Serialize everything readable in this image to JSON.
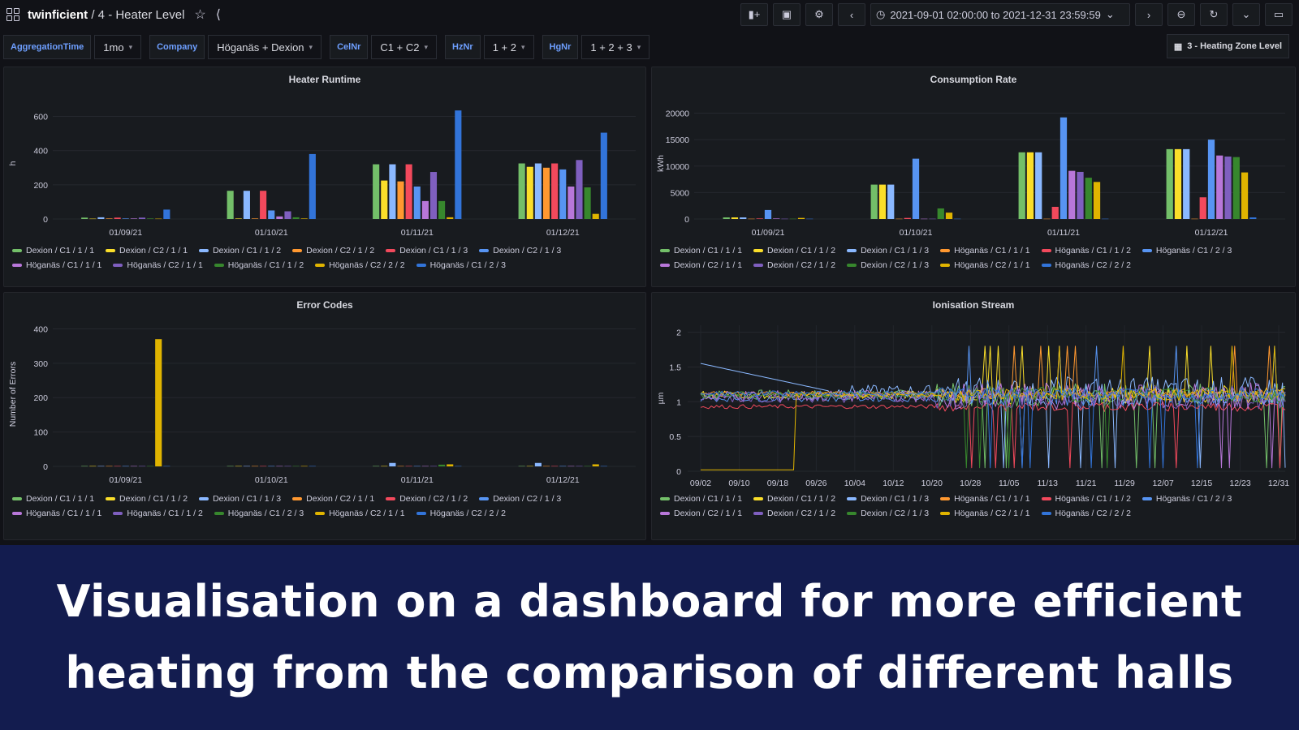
{
  "header": {
    "org": "twinficient",
    "dashboard": "/ 4 - Heater Level",
    "time_range": "2021-09-01 02:00:00 to 2021-12-31 23:59:59"
  },
  "variables": [
    {
      "label": "AggregationTime",
      "value": "1mo"
    },
    {
      "label": "Company",
      "value": "Höganäs + Dexion"
    },
    {
      "label": "CelNr",
      "value": "C1 + C2"
    },
    {
      "label": "HzNr",
      "value": "1 + 2"
    },
    {
      "label": "HgNr",
      "value": "1 + 2 + 3"
    }
  ],
  "dashlink": "3 - Heating Zone Level",
  "banner": {
    "line1": "Visualisation on a dashboard for more efficient",
    "line2": "heating from the comparison of different halls"
  },
  "chart_data": [
    {
      "title": "Heater Runtime",
      "type": "bar",
      "ylabel": "h",
      "ylim": [
        0,
        650
      ],
      "yticks": [
        0,
        200,
        400,
        600
      ],
      "categories": [
        "01/09/21",
        "01/10/21",
        "01/11/21",
        "01/12/21"
      ],
      "series": [
        {
          "name": "Dexion / C1 / 1 / 1",
          "color": "#73bf69",
          "values": [
            8,
            165,
            320,
            325
          ]
        },
        {
          "name": "Dexion / C2 / 1 / 1",
          "color": "#fade2a",
          "values": [
            2,
            3,
            225,
            305
          ]
        },
        {
          "name": "Dexion / C1 / 1 / 2",
          "color": "#8ab8ff",
          "values": [
            10,
            165,
            320,
            325
          ]
        },
        {
          "name": "Dexion / C2 / 1 / 2",
          "color": "#ff9830",
          "values": [
            3,
            3,
            220,
            300
          ]
        },
        {
          "name": "Dexion / C1 / 1 / 3",
          "color": "#f2495c",
          "values": [
            8,
            165,
            320,
            325
          ]
        },
        {
          "name": "Dexion / C2 / 1 / 3",
          "color": "#5794f2",
          "values": [
            3,
            50,
            190,
            290
          ]
        },
        {
          "name": "Höganäs / C1 / 1 / 1",
          "color": "#b877d9",
          "values": [
            3,
            15,
            105,
            190
          ]
        },
        {
          "name": "Höganäs / C2 / 1 / 1",
          "color": "#7f5fbf",
          "values": [
            8,
            45,
            275,
            345
          ]
        },
        {
          "name": "Höganäs / C1 / 1 / 2",
          "color": "#37872d",
          "values": [
            3,
            10,
            105,
            185
          ]
        },
        {
          "name": "Höganäs / C2 / 2 / 2",
          "color": "#e0b400",
          "values": [
            2,
            3,
            10,
            30
          ]
        },
        {
          "name": "Höganäs / C1 / 2 / 3",
          "color": "#3274d9",
          "values": [
            55,
            380,
            635,
            505
          ]
        }
      ]
    },
    {
      "title": "Consumption Rate",
      "type": "bar",
      "ylabel": "kWh",
      "ylim": [
        0,
        21000
      ],
      "yticks": [
        0,
        5000,
        10000,
        15000,
        20000
      ],
      "categories": [
        "01/09/21",
        "01/10/21",
        "01/11/21",
        "01/12/21"
      ],
      "series": [
        {
          "name": "Dexion / C1 / 1 / 1",
          "color": "#73bf69",
          "values": [
            300,
            6500,
            12600,
            13200
          ]
        },
        {
          "name": "Dexion / C1 / 1 / 2",
          "color": "#fade2a",
          "values": [
            300,
            6500,
            12600,
            13200
          ]
        },
        {
          "name": "Dexion / C1 / 1 / 3",
          "color": "#8ab8ff",
          "values": [
            300,
            6500,
            12600,
            13200
          ]
        },
        {
          "name": "Höganäs / C1 / 1 / 1",
          "color": "#ff9830",
          "values": [
            50,
            50,
            50,
            50
          ]
        },
        {
          "name": "Höganäs / C1 / 1 / 2",
          "color": "#f2495c",
          "values": [
            100,
            200,
            2300,
            4100
          ]
        },
        {
          "name": "Höganäs / C1 / 2 / 3",
          "color": "#5794f2",
          "values": [
            1700,
            11400,
            19200,
            15000
          ]
        },
        {
          "name": "Dexion / C2 / 1 / 1",
          "color": "#b877d9",
          "values": [
            100,
            50,
            9100,
            12000
          ]
        },
        {
          "name": "Dexion / C2 / 1 / 2",
          "color": "#7f5fbf",
          "values": [
            50,
            50,
            8900,
            11800
          ]
        },
        {
          "name": "Dexion / C2 / 1 / 3",
          "color": "#37872d",
          "values": [
            50,
            2000,
            7800,
            11700
          ]
        },
        {
          "name": "Höganäs / C2 / 1 / 1",
          "color": "#e0b400",
          "values": [
            200,
            1200,
            7000,
            8800
          ]
        },
        {
          "name": "Höganäs / C2 / 2 / 2",
          "color": "#3274d9",
          "values": [
            50,
            50,
            50,
            300
          ]
        }
      ]
    },
    {
      "title": "Error Codes",
      "type": "bar",
      "ylabel": "Number of Errors",
      "ylim": [
        0,
        420
      ],
      "yticks": [
        0,
        100,
        200,
        300,
        400
      ],
      "categories": [
        "01/09/21",
        "01/10/21",
        "01/11/21",
        "01/12/21"
      ],
      "series": [
        {
          "name": "Dexion / C1 / 1 / 1",
          "color": "#73bf69",
          "values": [
            1,
            1,
            1,
            1
          ]
        },
        {
          "name": "Dexion / C1 / 1 / 2",
          "color": "#fade2a",
          "values": [
            1,
            1,
            1,
            1
          ]
        },
        {
          "name": "Dexion / C1 / 1 / 3",
          "color": "#8ab8ff",
          "values": [
            1,
            1,
            10,
            10
          ]
        },
        {
          "name": "Dexion / C2 / 1 / 1",
          "color": "#ff9830",
          "values": [
            1,
            1,
            1,
            1
          ]
        },
        {
          "name": "Dexion / C2 / 1 / 2",
          "color": "#f2495c",
          "values": [
            1,
            1,
            1,
            1
          ]
        },
        {
          "name": "Dexion / C2 / 1 / 3",
          "color": "#5794f2",
          "values": [
            1,
            1,
            1,
            1
          ]
        },
        {
          "name": "Höganäs / C1 / 1 / 1",
          "color": "#b877d9",
          "values": [
            1,
            1,
            1,
            1
          ]
        },
        {
          "name": "Höganäs / C1 / 1 / 2",
          "color": "#7f5fbf",
          "values": [
            1,
            1,
            1,
            1
          ]
        },
        {
          "name": "Höganäs / C1 / 2 / 3",
          "color": "#37872d",
          "values": [
            1,
            1,
            5,
            1
          ]
        },
        {
          "name": "Höganäs / C2 / 1 / 1",
          "color": "#e0b400",
          "values": [
            370,
            1,
            6,
            6
          ]
        },
        {
          "name": "Höganäs / C2 / 2 / 2",
          "color": "#3274d9",
          "values": [
            1,
            1,
            1,
            1
          ]
        }
      ]
    },
    {
      "title": "Ionisation Stream",
      "type": "line",
      "ylabel": "µm",
      "ylim": [
        0,
        2.1
      ],
      "yticks": [
        0,
        0.5,
        1,
        1.5,
        2
      ],
      "xticks": [
        "09/02",
        "09/10",
        "09/18",
        "09/26",
        "10/04",
        "10/12",
        "10/20",
        "10/28",
        "11/05",
        "11/13",
        "11/21",
        "11/29",
        "12/07",
        "12/15",
        "12/23",
        "12/31"
      ],
      "series": [
        {
          "name": "Dexion / C1 / 1 / 1",
          "color": "#73bf69",
          "base": 1.1,
          "noise": 0.12
        },
        {
          "name": "Dexion / C1 / 1 / 2",
          "color": "#fade2a",
          "base": 1.1,
          "noise": 0.1
        },
        {
          "name": "Dexion / C1 / 1 / 3",
          "color": "#8ab8ff",
          "base": 1.15,
          "noise": 0.15
        },
        {
          "name": "Höganäs / C1 / 1 / 1",
          "color": "#ff9830",
          "base": 1.12,
          "noise": 0.05
        },
        {
          "name": "Höganäs / C1 / 1 / 2",
          "color": "#f2495c",
          "base": 0.93,
          "noise": 0.05
        },
        {
          "name": "Höganäs / C1 / 2 / 3",
          "color": "#5794f2",
          "base": 1.05,
          "noise": 0.08
        },
        {
          "name": "Dexion / C2 / 1 / 1",
          "color": "#b877d9",
          "base": 1.08,
          "noise": 0.14
        },
        {
          "name": "Dexion / C2 / 1 / 2",
          "color": "#7f5fbf",
          "base": 1.06,
          "noise": 0.12
        },
        {
          "name": "Dexion / C2 / 1 / 3",
          "color": "#37872d",
          "base": 1.1,
          "noise": 0.08
        },
        {
          "name": "Höganäs / C2 / 1 / 1",
          "color": "#e0b400",
          "base": 1.1,
          "noise": 0.06
        },
        {
          "name": "Höganäs / C2 / 2 / 2",
          "color": "#3274d9",
          "base": 1.12,
          "noise": 0.06
        }
      ]
    }
  ]
}
